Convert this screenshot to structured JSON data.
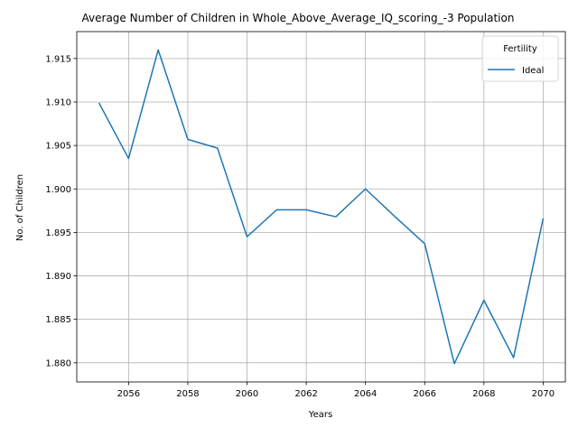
{
  "chart_data": {
    "type": "line",
    "title": "Average Number of Children in Whole_Above_Average_IQ_scoring_-3 Population",
    "xlabel": "Years",
    "ylabel": "No. of Children",
    "xlim": [
      2054.25,
      2070.75
    ],
    "ylim": [
      1.8778,
      1.9181
    ],
    "xticks": [
      2056,
      2058,
      2060,
      2062,
      2064,
      2066,
      2068,
      2070
    ],
    "yticks": [
      1.88,
      1.885,
      1.89,
      1.895,
      1.9,
      1.905,
      1.91,
      1.915
    ],
    "grid": true,
    "legend": {
      "title": "Fertility",
      "placement": "top-right"
    },
    "series": [
      {
        "name": "Ideal",
        "color": "#1f77b4",
        "x": [
          2055,
          2056,
          2057,
          2058,
          2059,
          2060,
          2061,
          2062,
          2063,
          2064,
          2065,
          2066,
          2067,
          2068,
          2069,
          2070
        ],
        "values": [
          1.9099,
          1.9035,
          1.916,
          1.9057,
          1.9047,
          1.8945,
          1.8976,
          1.8976,
          1.8968,
          1.9,
          1.8968,
          1.8937,
          1.8799,
          1.8872,
          1.8806,
          1.8966
        ]
      }
    ]
  }
}
